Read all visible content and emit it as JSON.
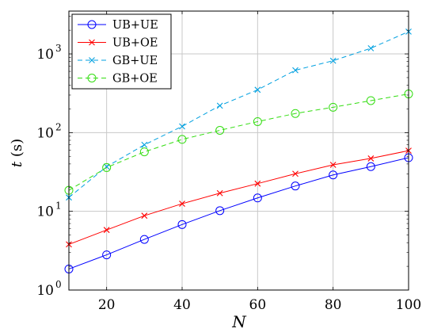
{
  "chart_data": {
    "type": "line",
    "xlabel": "N",
    "ylabel": "t (s)",
    "xscale": "linear",
    "yscale": "log",
    "xlim": [
      10,
      100
    ],
    "ylim": [
      1,
      3500
    ],
    "grid": true,
    "legend_position": "top-left",
    "x_ticks": [
      20,
      40,
      60,
      80,
      100
    ],
    "x_tick_labels": [
      "20",
      "40",
      "60",
      "80",
      "100"
    ],
    "y_ticks": [
      1,
      10,
      100,
      1000
    ],
    "y_tick_labels": [
      "10",
      "10",
      "10",
      "10"
    ],
    "y_tick_exponents": [
      "0",
      "1",
      "2",
      "3"
    ],
    "x": [
      10,
      20,
      30,
      40,
      50,
      60,
      70,
      80,
      90,
      100
    ],
    "series": [
      {
        "name": "UB+UE",
        "color": "#0000ff",
        "marker": "circle",
        "dashed": false,
        "values": [
          1.85,
          2.8,
          4.4,
          6.8,
          10.2,
          14.8,
          21,
          29,
          37,
          48
        ]
      },
      {
        "name": "UB+OE",
        "color": "#ff0000",
        "marker": "x",
        "dashed": false,
        "values": [
          3.8,
          5.8,
          8.8,
          12.5,
          17,
          22.5,
          30,
          39,
          47,
          59
        ]
      },
      {
        "name": "GB+UE",
        "color": "#00a0e0",
        "marker": "x",
        "dashed": true,
        "values": [
          15,
          37,
          70,
          120,
          220,
          350,
          620,
          820,
          1180,
          1920
        ]
      },
      {
        "name": "GB+OE",
        "color": "#33dd11",
        "marker": "circle",
        "dashed": true,
        "values": [
          18.5,
          36,
          57,
          82,
          107,
          138,
          175,
          210,
          255,
          310
        ]
      }
    ]
  }
}
